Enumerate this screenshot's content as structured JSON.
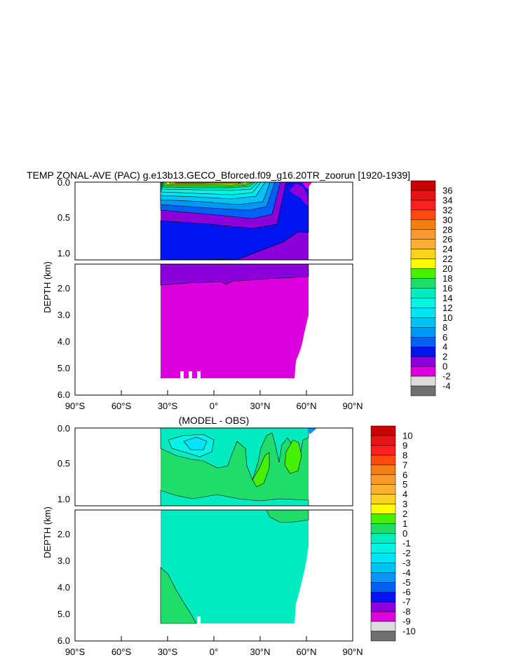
{
  "chart_data": [
    {
      "type": "heatmap",
      "title": "TEMP ZONAL-AVE (PAC) g.e13b13.GECO_Bforced.f09_g16.20TR_zoorun [1920-1939]",
      "ylabel": "DEPTH (km)",
      "xlabel": "",
      "x_ticks": [
        "90°S",
        "60°S",
        "30°S",
        "0°",
        "30°N",
        "60°N",
        "90°N"
      ],
      "upper_y_ticks": [
        "0.0",
        "0.5",
        "1.0"
      ],
      "lower_y_ticks": [
        "2.0",
        "3.0",
        "4.0",
        "5.0",
        "6.0"
      ],
      "colorbar": {
        "labels": [
          "36",
          "34",
          "32",
          "30",
          "28",
          "26",
          "24",
          "22",
          "20",
          "18",
          "16",
          "14",
          "12",
          "10",
          "8",
          "6",
          "4",
          "2",
          "0",
          "-2",
          "-4"
        ],
        "colors": [
          "#c80000",
          "#e61414",
          "#ff2020",
          "#ff4a10",
          "#f47e10",
          "#f99a2c",
          "#fdb035",
          "#ffd21e",
          "#ffff00",
          "#46f000",
          "#20dc6a",
          "#00ebc0",
          "#00f5e6",
          "#00e4f5",
          "#00c2f5",
          "#0096f5",
          "#0060f8",
          "#0014f0",
          "#8c00dc",
          "#dc00dc",
          "#dcdcdc",
          "#707070"
        ]
      }
    },
    {
      "type": "heatmap",
      "title": "(MODEL - OBS)",
      "ylabel": "DEPTH (km)",
      "xlabel": "",
      "x_ticks": [
        "90°S",
        "60°S",
        "30°S",
        "0°",
        "30°N",
        "60°N",
        "90°N"
      ],
      "upper_y_ticks": [
        "0.0",
        "0.5",
        "1.0"
      ],
      "lower_y_ticks": [
        "2.0",
        "3.0",
        "4.0",
        "5.0",
        "6.0"
      ],
      "colorbar": {
        "labels": [
          "10",
          "9",
          "8",
          "7",
          "6",
          "5",
          "4",
          "3",
          "2",
          "1",
          "0",
          "-1",
          "-2",
          "-3",
          "-4",
          "-5",
          "-6",
          "-7",
          "-8",
          "-9",
          "-10"
        ],
        "colors": [
          "#c80000",
          "#e61414",
          "#ff2020",
          "#ff4a10",
          "#f47e10",
          "#f99a2c",
          "#fdb035",
          "#ffd21e",
          "#ffff00",
          "#46f000",
          "#20dc6a",
          "#00ebc0",
          "#00f5e6",
          "#00e4f5",
          "#00c2f5",
          "#0096f5",
          "#0060f8",
          "#0014f0",
          "#8c00dc",
          "#dc00dc",
          "#dcdcdc",
          "#707070"
        ]
      }
    }
  ]
}
